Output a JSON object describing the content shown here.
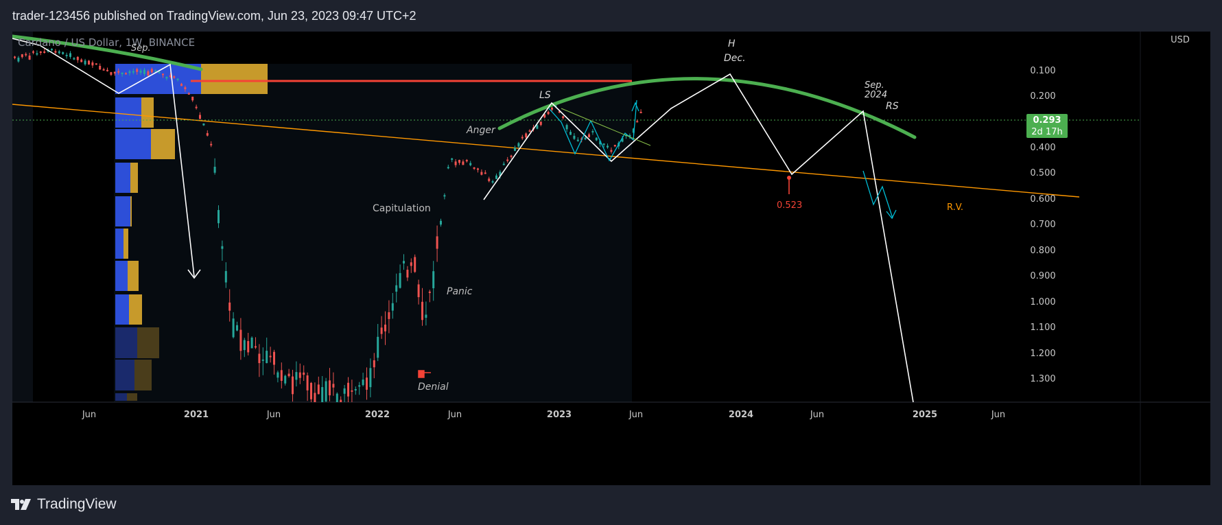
{
  "header": {
    "published_text": "trader-123456 published on TradingView.com, Jun 23, 2023 09:47 UTC+2"
  },
  "footer": {
    "brand": "TradingView",
    "logo_icon": "tradingview-logo-icon"
  },
  "chart_data": {
    "type": "candlestick",
    "symbol_title": "Cardano / US Dollar, 1W, BINANCE",
    "currency_label": "USD",
    "price_axis": {
      "scale": "inverted",
      "ticks": [
        "0.100",
        "0.200",
        "0.400",
        "0.500",
        "0.600",
        "0.700",
        "0.800",
        "0.900",
        "1.000",
        "1.100",
        "1.200",
        "1.300"
      ]
    },
    "last_price": {
      "value": "0.293",
      "countdown": "2d 17h",
      "color": "#4caf50"
    },
    "time_axis": {
      "ticks": [
        "Jun",
        "2021",
        "Jun",
        "2022",
        "Jun",
        "2023",
        "Jun",
        "2024",
        "Jun",
        "2025",
        "Jun"
      ],
      "bold": [
        "2021",
        "2022",
        "2023",
        "2024",
        "2025"
      ]
    },
    "annotations": {
      "sep_top": "Sep.",
      "h": "H",
      "dec": "Dec.",
      "ls": "LS",
      "sep_2024": "Sep.",
      "year_2024": "2024",
      "rs": "RS",
      "anger": "Anger",
      "capitulation": "Capitulation",
      "panic": "Panic",
      "denial": "Denial",
      "target": "0.523",
      "rv": "R.V."
    },
    "colors": {
      "bull": "#26a69a",
      "bear": "#ef5350",
      "arc": "#4caf50",
      "resistance": "#f44336",
      "trendline": "#ff9800",
      "projection": "#ffffff",
      "volume_up": "#2962ff",
      "volume_down": "#c79a2b"
    },
    "candles_note": "inverted log-style scale; candles approximate"
  }
}
